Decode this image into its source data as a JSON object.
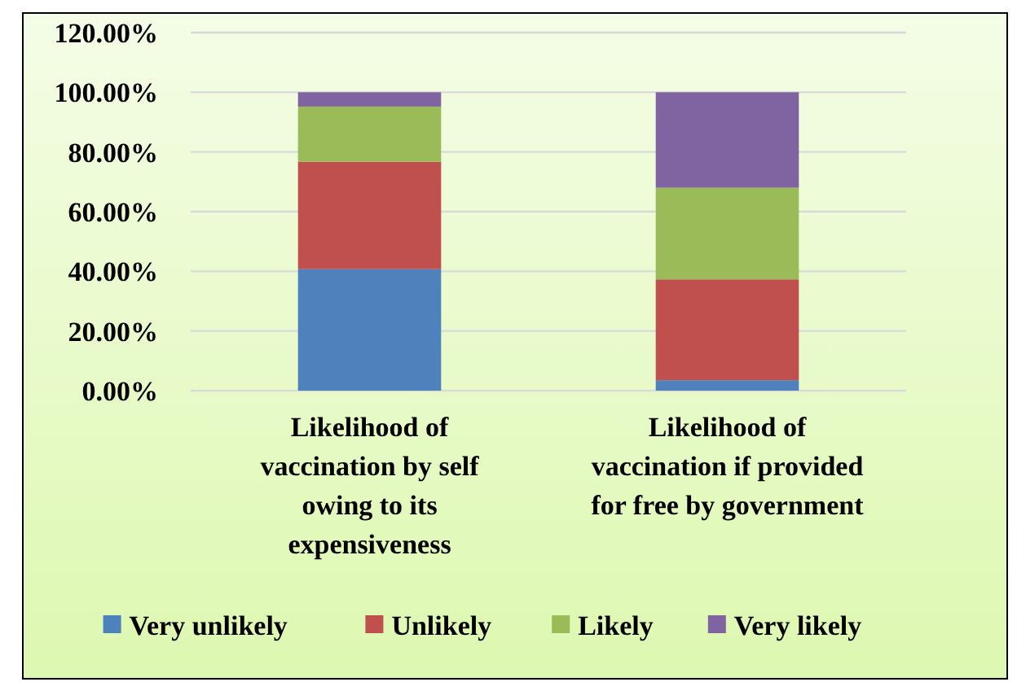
{
  "chart_data": {
    "type": "bar",
    "stacked": true,
    "categories": [
      "Likelihood of vaccination by self owing to its expensiveness",
      "Likelihood of vaccination if provided for free by government"
    ],
    "series": [
      {
        "name": "Very unlikely",
        "color": "#4f81bd",
        "values": [
          40.7,
          3.5
        ]
      },
      {
        "name": "Unlikely",
        "color": "#c0504d",
        "values": [
          36.0,
          33.8
        ]
      },
      {
        "name": "Likely",
        "color": "#9bbb59",
        "values": [
          18.5,
          30.7
        ]
      },
      {
        "name": "Very likely",
        "color": "#8064a2",
        "values": [
          4.8,
          32.0
        ]
      }
    ],
    "ylim": [
      0,
      120
    ],
    "yticks": [
      {
        "value": 0,
        "label": "0.00%"
      },
      {
        "value": 20,
        "label": "20.00%"
      },
      {
        "value": 40,
        "label": "40.00%"
      },
      {
        "value": 60,
        "label": "60.00%"
      },
      {
        "value": 80,
        "label": "80.00%"
      },
      {
        "value": 100,
        "label": "100.00%"
      },
      {
        "value": 120,
        "label": "120.00%"
      }
    ],
    "grid": "y",
    "legend": "bottom"
  }
}
